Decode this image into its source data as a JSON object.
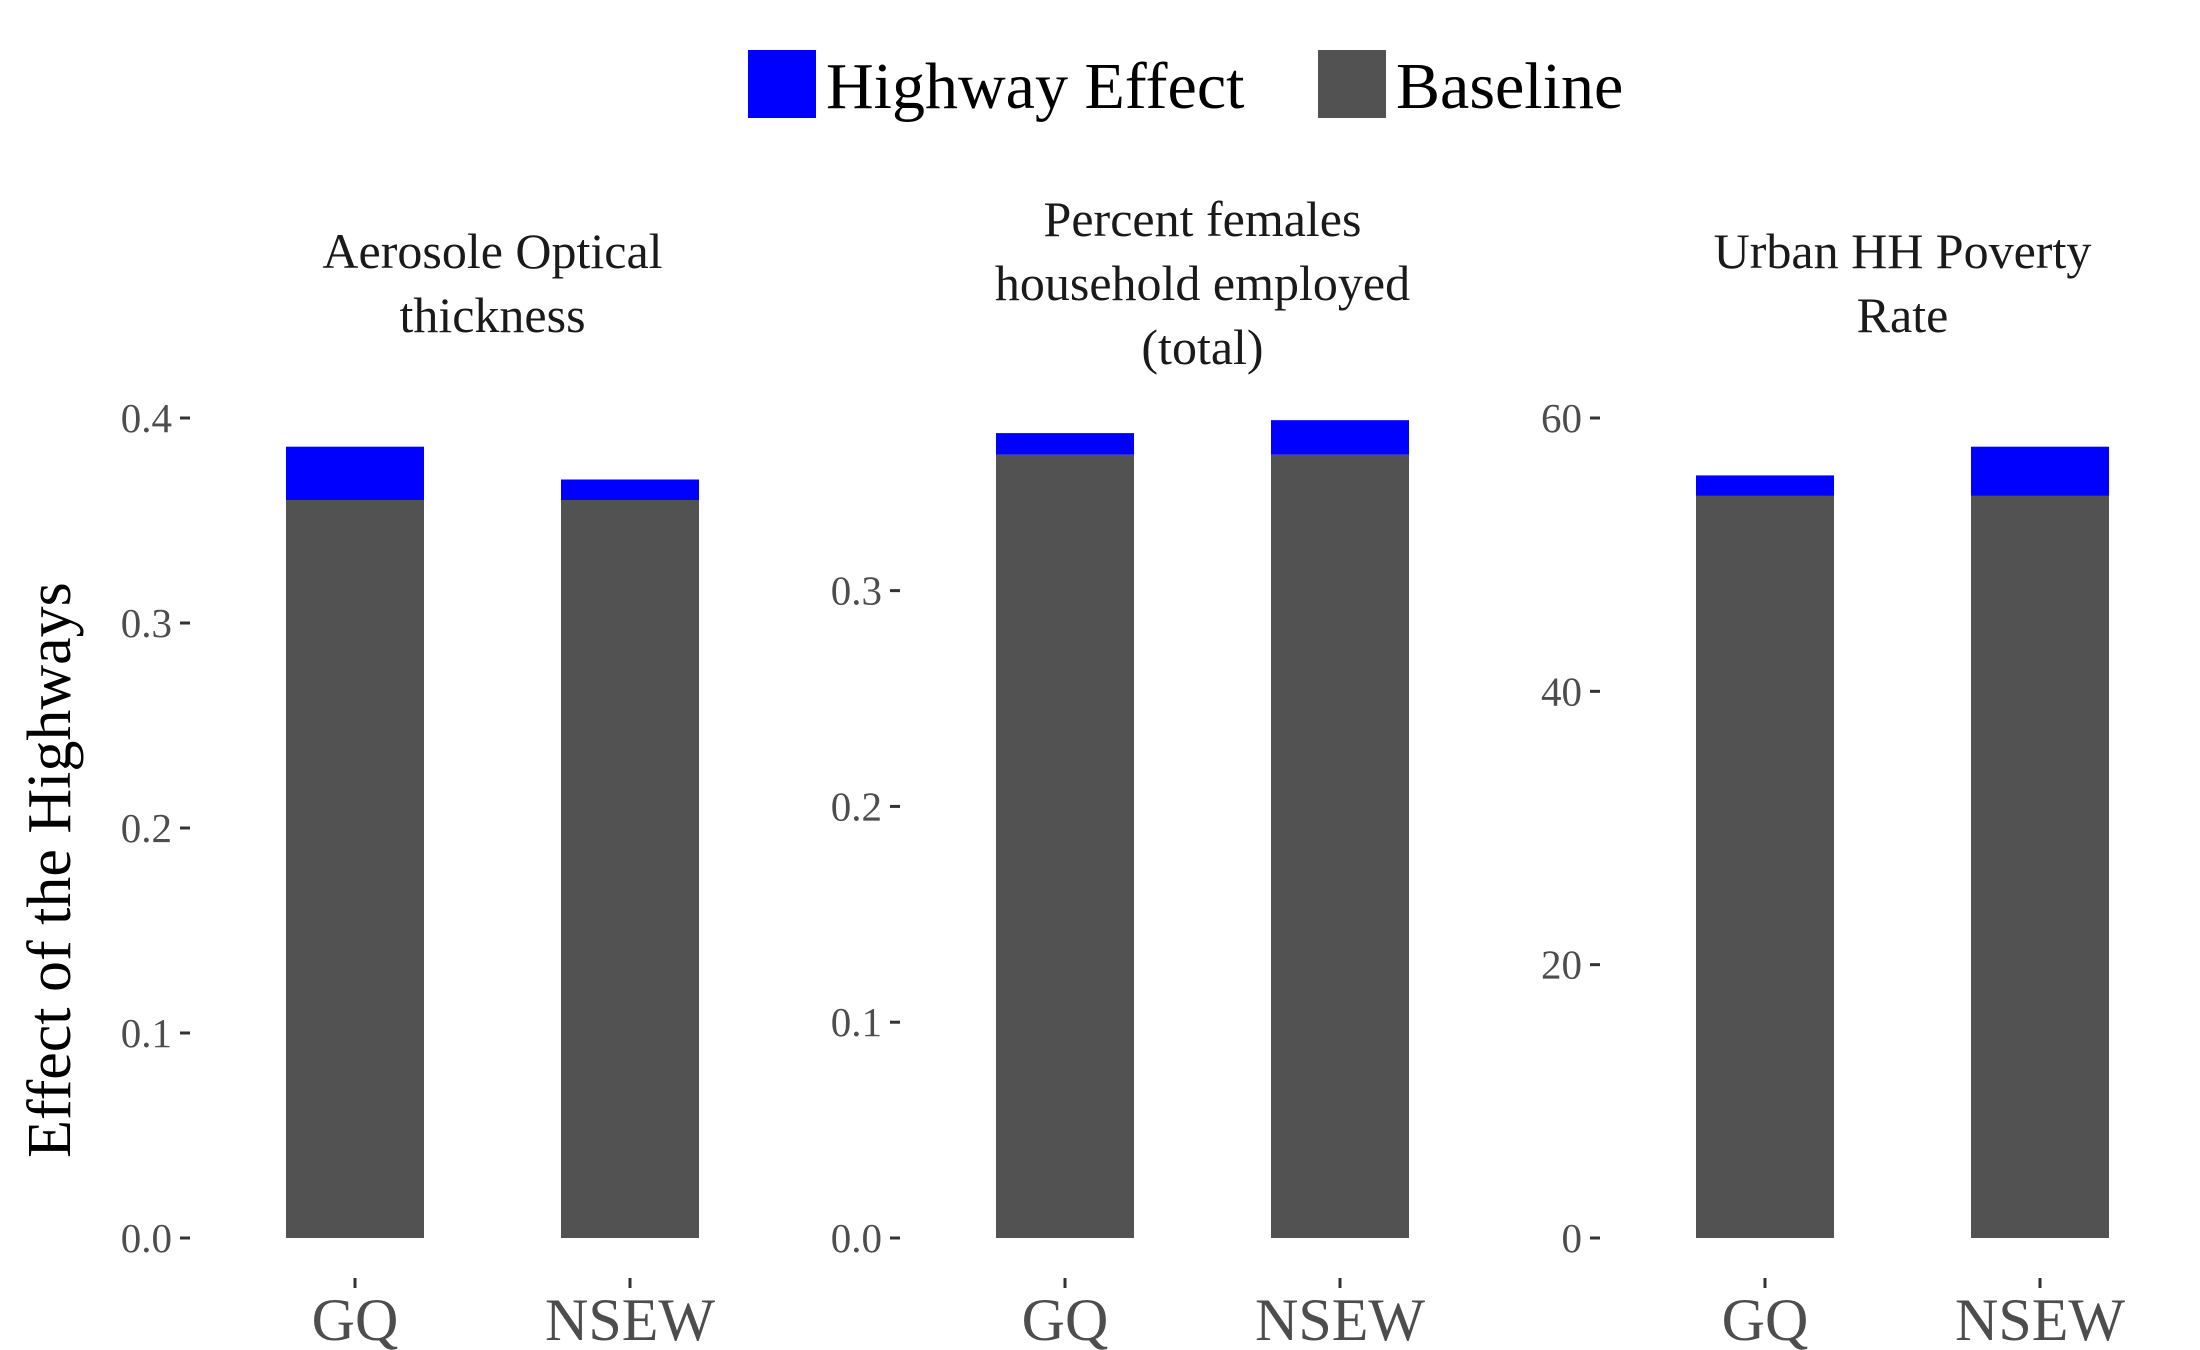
{
  "chart_data": {
    "type": "bar",
    "stacked": true,
    "y_axis_title": "Effect of the Highways",
    "legend": {
      "placement": "top",
      "items": [
        {
          "name": "Highway Effect",
          "color": "#0000ff"
        },
        {
          "name": "Baseline",
          "color": "#525252"
        }
      ]
    },
    "grid": false,
    "panels": [
      {
        "title_lines": [
          "Aerosole Optical",
          "thickness"
        ],
        "categories": [
          "GQ",
          "NSEW"
        ],
        "ylim": [
          0,
          0.4
        ],
        "yticks": [
          0.0,
          0.1,
          0.2,
          0.3,
          0.4
        ],
        "ytick_labels": [
          "0.0",
          "0.1",
          "0.2",
          "0.3",
          "0.4"
        ],
        "series": [
          {
            "name": "Baseline",
            "values": [
              0.36,
              0.36
            ]
          },
          {
            "name": "Highway Effect",
            "values": [
              0.026,
              0.01
            ]
          }
        ]
      },
      {
        "title_lines": [
          "Percent females",
          "household employed",
          "(total)"
        ],
        "categories": [
          "GQ",
          "NSEW"
        ],
        "ylim": [
          0,
          0.38
        ],
        "yticks": [
          0.0,
          0.1,
          0.2,
          0.3
        ],
        "ytick_labels": [
          "0.0",
          "0.1",
          "0.2",
          "0.3"
        ],
        "series": [
          {
            "name": "Baseline",
            "values": [
              0.363,
              0.363
            ]
          },
          {
            "name": "Highway Effect",
            "values": [
              0.01,
              0.016
            ]
          }
        ]
      },
      {
        "title_lines": [
          "Urban HH Poverty",
          "Rate"
        ],
        "categories": [
          "GQ",
          "NSEW"
        ],
        "ylim": [
          0,
          60
        ],
        "yticks": [
          0,
          20,
          40,
          60
        ],
        "ytick_labels": [
          "0",
          "20",
          "40",
          "60"
        ],
        "series": [
          {
            "name": "Baseline",
            "values": [
              54.3,
              54.3
            ]
          },
          {
            "name": "Highway Effect",
            "values": [
              1.5,
              3.6
            ]
          }
        ]
      }
    ]
  }
}
